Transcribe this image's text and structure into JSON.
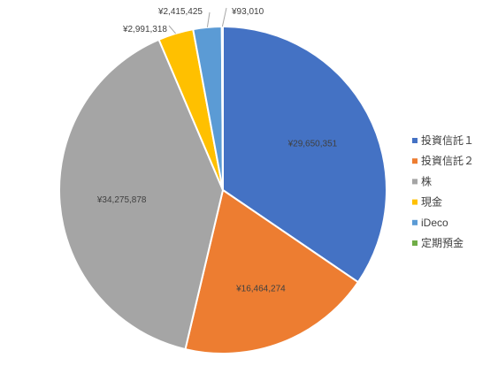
{
  "chart_data": {
    "type": "pie",
    "title": "",
    "categories": [
      "投資信託１",
      "投資信託２",
      "株",
      "現金",
      "iDeco",
      "定期預金"
    ],
    "values": [
      29650351,
      16464274,
      34275878,
      2991318,
      2415425,
      93010
    ],
    "data_labels": [
      "¥29,650,351",
      "¥16,464,274",
      "¥34,275,878",
      "¥2,991,318",
      "¥2,415,425",
      "¥93,010"
    ],
    "colors": [
      "#4472C4",
      "#ED7D31",
      "#A5A5A5",
      "#FFC000",
      "#5B9BD5",
      "#70AD47"
    ],
    "start_angle_deg": 0,
    "direction": "clockwise",
    "legend_position": "right",
    "label_style": "currency"
  }
}
